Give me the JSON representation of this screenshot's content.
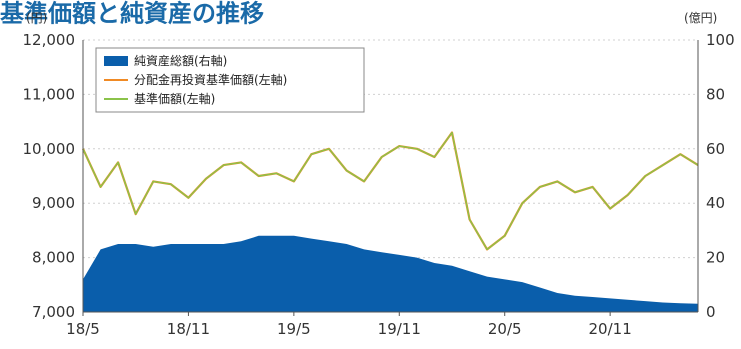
{
  "chart_data": {
    "type": "line",
    "title": "基準価額と純資産の推移",
    "left_axis_unit": "(円)",
    "right_axis_unit": "(億円)",
    "x_ticks": [
      "18/5",
      "18/11",
      "19/5",
      "19/11",
      "20/5",
      "20/11"
    ],
    "left_axis": {
      "ylim": [
        7000,
        12000
      ],
      "ticks": [
        "7,000",
        "8,000",
        "9,000",
        "10,000",
        "11,000",
        "12,000"
      ]
    },
    "right_axis": {
      "ylim": [
        0,
        100
      ],
      "ticks": [
        "0",
        "20",
        "40",
        "60",
        "80",
        "100"
      ]
    },
    "legend": [
      {
        "label": "純資産総額(右軸)",
        "type": "area",
        "color": "#0a5eab"
      },
      {
        "label": "分配金再投資基準価額(左軸)",
        "type": "line",
        "color": "#f08a24"
      },
      {
        "label": "基準価額(左軸)",
        "type": "line",
        "color": "#8bc34a"
      }
    ],
    "x": [
      "18/5",
      "18/6",
      "18/7",
      "18/8",
      "18/9",
      "18/10",
      "18/11",
      "18/12",
      "19/1",
      "19/2",
      "19/3",
      "19/4",
      "19/5",
      "19/6",
      "19/7",
      "19/8",
      "19/9",
      "19/10",
      "19/11",
      "19/12",
      "20/1",
      "20/2",
      "20/3",
      "20/4",
      "20/5",
      "20/6",
      "20/7",
      "20/8",
      "20/9",
      "20/10",
      "20/11",
      "20/12",
      "21/1",
      "21/2",
      "21/3",
      "21/4"
    ],
    "series": [
      {
        "name": "純資産総額(右軸)",
        "axis": "right",
        "color": "#0a5eab",
        "values": [
          12,
          23,
          25,
          25,
          24,
          25,
          25,
          25,
          25,
          26,
          28,
          28,
          28,
          27,
          26,
          25,
          23,
          22,
          21,
          20,
          18,
          17,
          15,
          13,
          12,
          11,
          9,
          7,
          6,
          5.5,
          5,
          4.5,
          4,
          3.5,
          3.2,
          3
        ]
      },
      {
        "name": "分配金再投資基準価額(左軸)",
        "axis": "left",
        "color": "#f08a24",
        "values": [
          10000,
          9300,
          9750,
          8800,
          9400,
          9350,
          9100,
          9450,
          9700,
          9750,
          9500,
          9550,
          9400,
          9900,
          10000,
          9600,
          9400,
          9850,
          10050,
          10000,
          9850,
          10300,
          8700,
          8150,
          8400,
          9000,
          9300,
          9400,
          9200,
          9300,
          8900,
          9150,
          9500,
          9700,
          9900,
          9700
        ]
      },
      {
        "name": "基準価額(左軸)",
        "axis": "left",
        "color": "#8bc34a",
        "values": [
          10000,
          9300,
          9750,
          8800,
          9400,
          9350,
          9100,
          9450,
          9700,
          9750,
          9500,
          9550,
          9400,
          9900,
          10000,
          9600,
          9400,
          9850,
          10050,
          10000,
          9850,
          10300,
          8700,
          8150,
          8400,
          9000,
          9300,
          9400,
          9200,
          9300,
          8900,
          9150,
          9500,
          9700,
          9900,
          9700
        ]
      }
    ]
  }
}
